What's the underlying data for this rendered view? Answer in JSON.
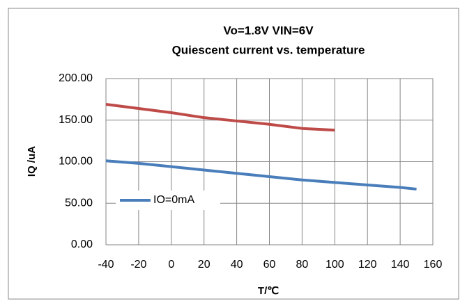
{
  "chart_data": {
    "type": "line",
    "title": [
      "Vo=1.8V VIN=6V",
      "Quiescent current vs. temperature"
    ],
    "xlabel": "T/℃",
    "ylabel": "IQ /uA",
    "xlim": [
      -40,
      160
    ],
    "xticks": [
      -40,
      -20,
      0,
      20,
      40,
      60,
      80,
      100,
      120,
      140,
      160
    ],
    "ylim": [
      0,
      200
    ],
    "yticks": [
      {
        "value": 0,
        "label": "0.00"
      },
      {
        "value": 50,
        "label": "50.00"
      },
      {
        "value": 100,
        "label": "100.00"
      },
      {
        "value": 150,
        "label": "150.00"
      },
      {
        "value": 200,
        "label": "200.00"
      }
    ],
    "grid": true,
    "legend": "lower left",
    "series": [
      {
        "name": "IO=0mA",
        "color": "#4a7ebb",
        "x": [
          -40,
          -20,
          0,
          20,
          40,
          60,
          80,
          100,
          120,
          140,
          150
        ],
        "values": [
          101,
          98,
          94,
          90,
          86,
          82,
          78,
          75,
          72,
          69,
          67
        ]
      },
      {
        "color": "#be4b48",
        "x": [
          -40,
          -20,
          0,
          20,
          40,
          60,
          80,
          100
        ],
        "values": [
          169,
          164,
          159,
          153,
          149,
          145,
          140,
          138
        ]
      }
    ]
  }
}
